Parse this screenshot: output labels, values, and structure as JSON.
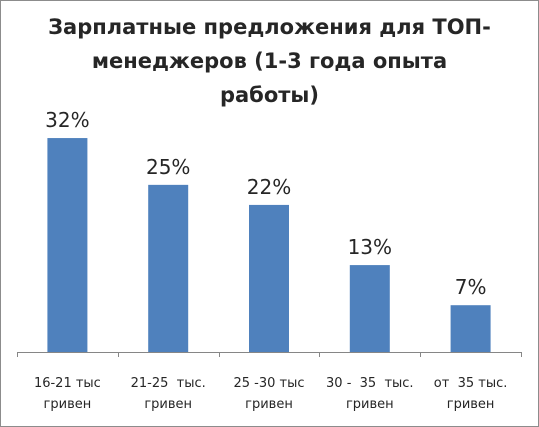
{
  "chart_data": {
    "type": "bar",
    "title_lines": [
      "Зарплатные предложения для ТОП-",
      "менеджеров (1-3 года опыта",
      "работы)"
    ],
    "categories": [
      [
        "16-21 тыс",
        "гривен"
      ],
      [
        "21-25  тыс.",
        "гривен"
      ],
      [
        "25 -30 тыс",
        "гривен"
      ],
      [
        "30 -  35  тыс.",
        "гривен"
      ],
      [
        "от  35 тыс.",
        "гривен"
      ]
    ],
    "values": [
      32,
      25,
      22,
      13,
      7
    ],
    "data_labels": [
      "32%",
      "25%",
      "22%",
      "13%",
      "7%"
    ],
    "ylim": [
      0,
      35
    ],
    "grid": false,
    "legend": "none",
    "bar_color": "#4f81bd",
    "axis_color": "#868686",
    "text_color": "#262626"
  }
}
